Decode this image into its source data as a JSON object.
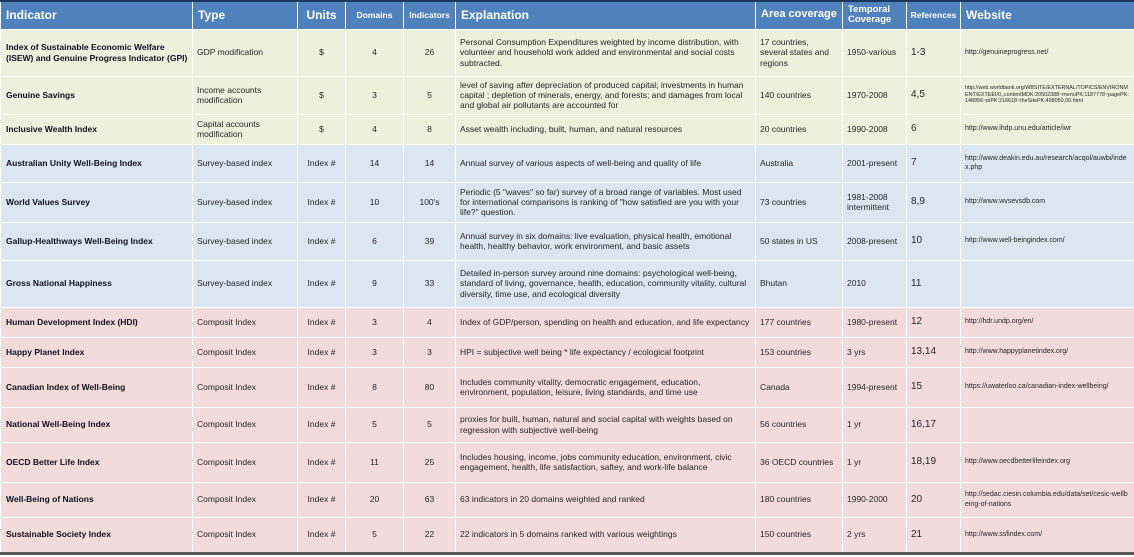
{
  "table": {
    "colors": {
      "header_bg": "#4F81BD",
      "header_text": "#FFFFFF",
      "group_green": "#EDF0DC",
      "group_blue": "#DCE6F1",
      "group_pink": "#F2DCDB",
      "bottom_bar": "#595959",
      "top_border": "#17375E"
    },
    "columns": [
      {
        "id": "indicator",
        "label": "Indicator"
      },
      {
        "id": "type",
        "label": "Type"
      },
      {
        "id": "units",
        "label": "Units"
      },
      {
        "id": "domains",
        "label": "Domains"
      },
      {
        "id": "indicators",
        "label": "Indicators"
      },
      {
        "id": "explanation",
        "label": "Explanation"
      },
      {
        "id": "area",
        "label": "Area coverage"
      },
      {
        "id": "temporal",
        "label": "Temporal Coverage"
      },
      {
        "id": "references",
        "label": "References"
      },
      {
        "id": "website",
        "label": "Website"
      }
    ],
    "rows": [
      {
        "group": "green",
        "indicator": "Index of Sustainable Economic Welfare (ISEW) and Genuine Progress Indicator (GPI)",
        "type": "GDP modification",
        "units": "$",
        "domains": "4",
        "indicators": "26",
        "explanation": "Personal Consumption Expenditures weighted by income distribution, with volunteer and household work added and environmental and social costs subtracted.",
        "area": "17 countries, several states and regions",
        "temporal": "1950-various",
        "references": "1-3",
        "website": "http://genuineprogress.net/"
      },
      {
        "group": "green",
        "indicator": "Genuine Savings",
        "type": "Income accounts modification",
        "units": "$",
        "domains": "3",
        "indicators": "5",
        "explanation": "level of saving after depreciation of produced capital; investments in human capital ; depletion of minerals, energy, and forests; and damages from local and global air pollutants are accounted for",
        "area": "140 countries",
        "temporal": "1970-2008",
        "references": "4,5",
        "website": "http://web.worldbank.org/WBSITE/EXTERNAL/TOPICS/ENVIRONMENT/EXTEEI/0,,contentMDK:20502388~menuPK:1187778~pagePK:148956~piPK:216618~theSitePK:408050,00.html"
      },
      {
        "group": "green",
        "indicator": "Inclusive Wealth Index",
        "type": "Capital accounts modification",
        "units": "$",
        "domains": "4",
        "indicators": "8",
        "explanation": "Asset wealth including, built, human, and natural resources",
        "area": "20 countries",
        "temporal": "1990-2008",
        "references": "6",
        "website": "http://www.ihdp.unu.edu/article/iwr"
      },
      {
        "group": "blue",
        "indicator": "Australian Unity Well-Being Index",
        "type": "Survey-based index",
        "units": "Index #",
        "domains": "14",
        "indicators": "14",
        "explanation": "Annual survey of various aspects of well-being and quality of life",
        "area": "Australia",
        "temporal": "2001-present",
        "references": "7",
        "website": "http://www.deakin.edu.au/research/acqol/auwbi/index.php"
      },
      {
        "group": "blue",
        "indicator": "World Values Survey",
        "type": "Survey-based index",
        "units": "Index #",
        "domains": "10",
        "indicators": "100's",
        "explanation": "Periodic (5 \"waves\" so far) survey of a broad range of variables. Most used for international comparisons is ranking of \"how satisfied are you with your life?\" question.",
        "area": "73 countries",
        "temporal": "1981-2008 intermittent",
        "references": "8,9",
        "website": "http://www.wvsevsdb.com"
      },
      {
        "group": "blue",
        "indicator": "Gallup-Healthways Well-Being Index",
        "type": "Survey-based index",
        "units": "Index #",
        "domains": "6",
        "indicators": "39",
        "explanation": "Annual survey in six domains: live evaluation, physical health, emotional health, healthy behavior, work environment, and basic assets",
        "area": "50 states in US",
        "temporal": "2008-present",
        "references": "10",
        "website": "http://www.well-beingindex.com/"
      },
      {
        "group": "blue",
        "indicator": "Gross National Happiness",
        "type": "Survey-based index",
        "units": "Index #",
        "domains": "9",
        "indicators": "33",
        "explanation": "Detailed in-person survey around nine domains: psychological well-being, standard of living, governance, health, education, community vitality, cultural diversity, time use, and ecological diversity",
        "area": "Bhutan",
        "temporal": "2010",
        "references": "11",
        "website": ""
      },
      {
        "group": "pink",
        "indicator": "Human Development Index (HDI)",
        "type": "Composit Index",
        "units": "Index #",
        "domains": "3",
        "indicators": "4",
        "explanation": "Index of GDP/person, spending on health and education, and life expectancy",
        "area": "177 countries",
        "temporal": "1980-present",
        "references": "12",
        "website": "http://hdr.undp.org/en/"
      },
      {
        "group": "pink",
        "indicator": "Happy Planet Index",
        "type": "Composit Index",
        "units": "Index #",
        "domains": "3",
        "indicators": "3",
        "explanation": "HPI = subjective well being * life expectancy / ecological footprint",
        "area": "153 countries",
        "temporal": "3 yrs",
        "references": "13,14",
        "website": "http://www.happyplanetindex.org/"
      },
      {
        "group": "pink",
        "indicator": "Canadian Index of Well-Being",
        "type": "Composit Index",
        "units": "Index #",
        "domains": "8",
        "indicators": "80",
        "explanation": "Includes community vitality, democratic engagement, education, environment, population, leisure, living standards, and time use",
        "area": "Canada",
        "temporal": "1994-present",
        "references": "15",
        "website": "https://uwaterloo.ca/canadian-index-wellbeing/"
      },
      {
        "group": "pink",
        "indicator": "National Well-Being Index",
        "type": "Composit Index",
        "units": "Index #",
        "domains": "5",
        "indicators": "5",
        "explanation": "proxies for built, human, natural and social capital with weights based on regression with subjective well-being",
        "area": "56 countries",
        "temporal": "1 yr",
        "references": "16,17",
        "website": ""
      },
      {
        "group": "pink",
        "indicator": "OECD Better Life Index",
        "type": "Composit Index",
        "units": "Index #",
        "domains": "11",
        "indicators": "25",
        "explanation": "Includes housing, income, jobs community education, environment, civic engagement, health, life satisfaction, saftey, and work-life balance",
        "area": "36 OECD countries",
        "temporal": "1 yr",
        "references": "18,19",
        "website": "http://www.oecdbetterlifeindex.org"
      },
      {
        "group": "pink",
        "indicator": "Well-Being of Nations",
        "type": "Composit Index",
        "units": "Index #",
        "domains": "20",
        "indicators": "63",
        "explanation": "63 indicators in 20 domains weighted and ranked",
        "area": "180 countries",
        "temporal": "1990-2000",
        "references": "20",
        "website": "http://sedac.ciesin.columbia.edu/data/set/cesic-wellbeing-of-nations"
      },
      {
        "group": "pink",
        "indicator": "Sustainable Society Index",
        "type": "Composit Index",
        "units": "Index #",
        "domains": "5",
        "indicators": "22",
        "explanation": "22 indicators in 5 domains ranked with various weightings",
        "area": "150 countries",
        "temporal": "2 yrs",
        "references": "21",
        "website": "http://www.ssfindex.com/"
      }
    ]
  }
}
